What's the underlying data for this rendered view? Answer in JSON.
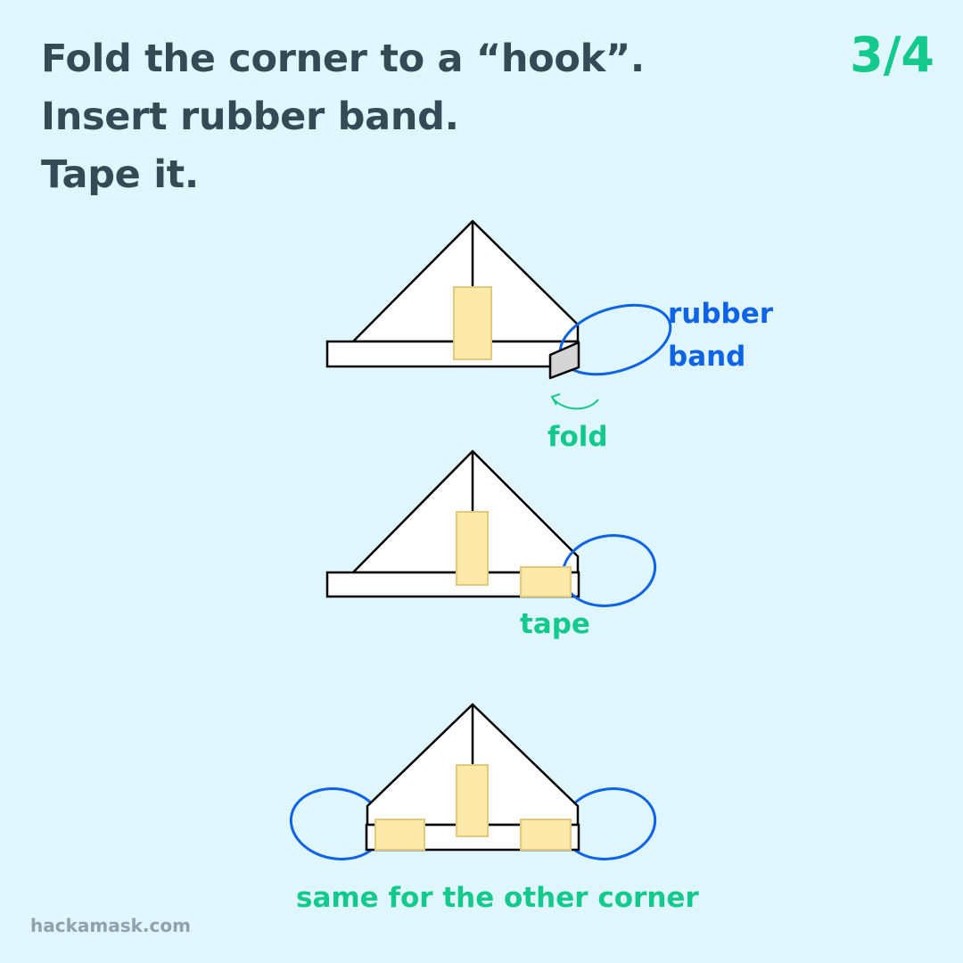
{
  "header": {
    "lines": [
      "Fold the corner to a “hook”.",
      "Insert rubber band.",
      "Tape it."
    ],
    "step": "3/4"
  },
  "diagram": {
    "label_rubber_band_1": "rubber",
    "label_rubber_band_2": "band",
    "label_fold": "fold",
    "label_tape": "tape",
    "label_other_corner": "same for the other corner"
  },
  "footer": {
    "site": "hackamask.com"
  },
  "colors": {
    "background": "#dff6fc",
    "title": "#344a55",
    "accent_green": "#14c98c",
    "rubber_band_blue": "#0f63e6",
    "tape_yellow": "#fdeaa8",
    "folded_corner_gray": "#d5d5d5"
  }
}
